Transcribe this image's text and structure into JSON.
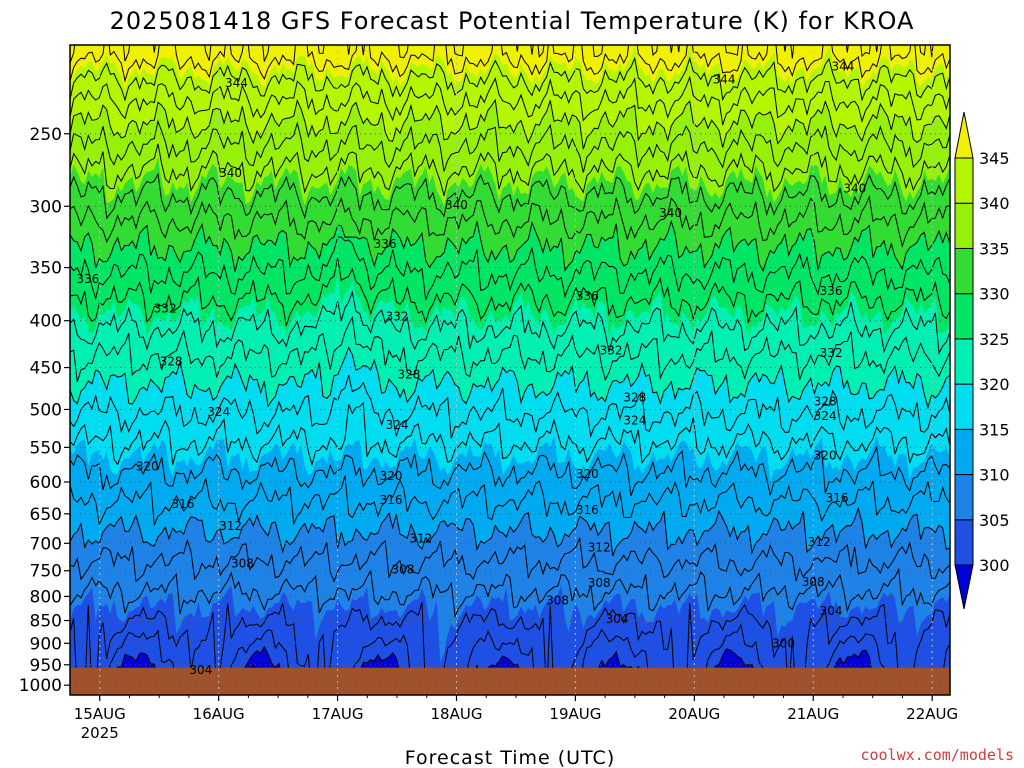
{
  "chart_data": {
    "type": "heatmap",
    "title": "2025081418 GFS Forecast Potential Temperature (K) for KROA",
    "xlabel": "Forecast Time (UTC)",
    "ylabel": "",
    "y_ticks": [
      250,
      300,
      350,
      400,
      450,
      500,
      550,
      600,
      650,
      700,
      750,
      800,
      850,
      900,
      950,
      1000
    ],
    "y_range": [
      200,
      1025
    ],
    "y_scale": "log",
    "surface_pressure": 957,
    "x_ticks": [
      "15AUG",
      "16AUG",
      "17AUG",
      "18AUG",
      "19AUG",
      "20AUG",
      "21AUG",
      "22AUG"
    ],
    "x_year_label": "2025",
    "x_range_days": [
      -0.25,
      7.15
    ],
    "grid": true,
    "legend": "right",
    "colorbar": {
      "ticks": [
        300,
        305,
        310,
        315,
        320,
        325,
        330,
        335,
        340,
        345
      ],
      "colors": [
        "#0000d8",
        "#1e50e6",
        "#1e82e6",
        "#00aaf0",
        "#00dcf0",
        "#00f0b4",
        "#00e664",
        "#32dc32",
        "#96f00a",
        "#b4f500",
        "#f0f000"
      ],
      "boundaries": [
        300,
        305,
        310,
        315,
        320,
        325,
        330,
        335,
        340,
        345
      ]
    },
    "contour_interval": 2,
    "contour_labels": [
      {
        "value": 344,
        "time": 1.15,
        "pressure": 220
      },
      {
        "value": 344,
        "time": 5.25,
        "pressure": 218
      },
      {
        "value": 344,
        "time": 6.25,
        "pressure": 211
      },
      {
        "value": 340,
        "time": 1.1,
        "pressure": 276
      },
      {
        "value": 340,
        "time": 3.0,
        "pressure": 299
      },
      {
        "value": 340,
        "time": 4.8,
        "pressure": 305
      },
      {
        "value": 340,
        "time": 6.35,
        "pressure": 287
      },
      {
        "value": 336,
        "time": -0.1,
        "pressure": 360
      },
      {
        "value": 336,
        "time": 2.4,
        "pressure": 330
      },
      {
        "value": 336,
        "time": 4.1,
        "pressure": 376
      },
      {
        "value": 336,
        "time": 6.15,
        "pressure": 371
      },
      {
        "value": 332,
        "time": 0.55,
        "pressure": 388
      },
      {
        "value": 332,
        "time": 2.5,
        "pressure": 396
      },
      {
        "value": 332,
        "time": 4.3,
        "pressure": 431
      },
      {
        "value": 332,
        "time": 6.15,
        "pressure": 434
      },
      {
        "value": 328,
        "time": 0.6,
        "pressure": 443
      },
      {
        "value": 328,
        "time": 2.6,
        "pressure": 458
      },
      {
        "value": 328,
        "time": 4.5,
        "pressure": 485
      },
      {
        "value": 328,
        "time": 6.1,
        "pressure": 490
      },
      {
        "value": 324,
        "time": 1.0,
        "pressure": 503
      },
      {
        "value": 324,
        "time": 2.5,
        "pressure": 520
      },
      {
        "value": 324,
        "time": 4.5,
        "pressure": 514
      },
      {
        "value": 324,
        "time": 6.1,
        "pressure": 508
      },
      {
        "value": 320,
        "time": 0.4,
        "pressure": 577
      },
      {
        "value": 320,
        "time": 2.45,
        "pressure": 591
      },
      {
        "value": 320,
        "time": 4.1,
        "pressure": 588
      },
      {
        "value": 320,
        "time": 6.1,
        "pressure": 561
      },
      {
        "value": 316,
        "time": 0.7,
        "pressure": 634
      },
      {
        "value": 316,
        "time": 2.45,
        "pressure": 628
      },
      {
        "value": 316,
        "time": 4.1,
        "pressure": 644
      },
      {
        "value": 316,
        "time": 6.2,
        "pressure": 625
      },
      {
        "value": 312,
        "time": 1.1,
        "pressure": 670
      },
      {
        "value": 312,
        "time": 2.7,
        "pressure": 692
      },
      {
        "value": 312,
        "time": 4.2,
        "pressure": 707
      },
      {
        "value": 312,
        "time": 6.05,
        "pressure": 698
      },
      {
        "value": 308,
        "time": 1.2,
        "pressure": 736
      },
      {
        "value": 308,
        "time": 2.55,
        "pressure": 748
      },
      {
        "value": 308,
        "time": 4.2,
        "pressure": 773
      },
      {
        "value": 308,
        "time": 6.0,
        "pressure": 772
      },
      {
        "value": 308,
        "time": 3.85,
        "pressure": 808
      },
      {
        "value": 304,
        "time": 4.35,
        "pressure": 847
      },
      {
        "value": 304,
        "time": 6.15,
        "pressure": 830
      },
      {
        "value": 304,
        "time": 0.85,
        "pressure": 962
      },
      {
        "value": 300,
        "time": 5.75,
        "pressure": 901
      }
    ],
    "credit": "coolwx.com/models"
  }
}
